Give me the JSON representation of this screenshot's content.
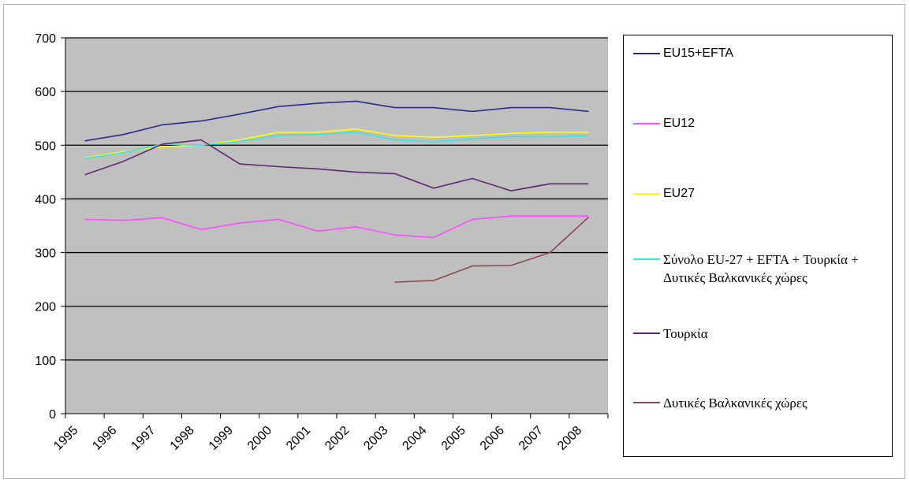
{
  "chart_data": {
    "type": "line",
    "x": [
      "1995",
      "1996",
      "1997",
      "1998",
      "1999",
      "2000",
      "2001",
      "2002",
      "2003",
      "2004",
      "2005",
      "2006",
      "2007",
      "2008"
    ],
    "ylim": [
      0,
      700
    ],
    "yticks": [
      0,
      100,
      200,
      300,
      400,
      500,
      600,
      700
    ],
    "grid": true,
    "legend_position": "right",
    "plot_background": "#c0c0c0",
    "series": [
      {
        "name": "EU15+EFTA",
        "color": "#2b2b8c",
        "values": [
          508,
          520,
          538,
          545,
          558,
          572,
          578,
          582,
          570,
          570,
          563,
          570,
          570,
          563
        ]
      },
      {
        "name": "EU12",
        "color": "#ff4dff",
        "values": [
          362,
          360,
          365,
          343,
          355,
          362,
          340,
          348,
          333,
          328,
          362,
          368,
          368,
          368
        ]
      },
      {
        "name": "EU27",
        "color": "#ffff00",
        "values": [
          476,
          488,
          497,
          500,
          510,
          524,
          524,
          530,
          518,
          515,
          518,
          522,
          524,
          524
        ]
      },
      {
        "name": "Σύνολο EU-27 + EFTA + Τουρκία + Δυτικές Βαλκανικές χώρες",
        "color": "#33e6e6",
        "values": [
          475,
          486,
          502,
          500,
          507,
          518,
          520,
          524,
          510,
          506,
          512,
          516,
          516,
          518
        ]
      },
      {
        "name": "Τουρκία",
        "color": "#5c2770",
        "values": [
          445,
          470,
          502,
          510,
          465,
          460,
          456,
          450,
          447,
          420,
          438,
          415,
          428,
          428
        ]
      },
      {
        "name": "Δυτικές Βαλκανικές χώρες",
        "color": "#8a4a55",
        "values": [
          null,
          null,
          null,
          null,
          null,
          null,
          null,
          null,
          245,
          248,
          275,
          276,
          300,
          366
        ]
      }
    ]
  }
}
